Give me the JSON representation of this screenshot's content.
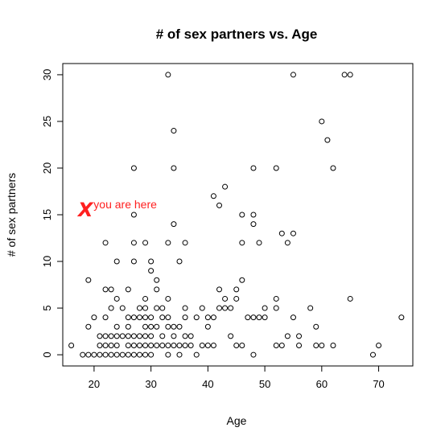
{
  "chart_data": {
    "type": "scatter",
    "title": "# of sex partners vs. Age",
    "xlabel": "Age",
    "ylabel": "# of sex partners",
    "xlim": [
      14.5,
      76
    ],
    "ylim": [
      -1.2,
      31.2
    ],
    "xticks": [
      20,
      30,
      40,
      50,
      60,
      70
    ],
    "yticks": [
      0,
      5,
      10,
      15,
      20,
      25,
      30
    ],
    "grid": false,
    "legend": "none",
    "marker": "open-circle",
    "marker_color": "#000000",
    "points": [
      [
        16,
        1
      ],
      [
        18,
        0
      ],
      [
        19,
        0
      ],
      [
        19,
        8
      ],
      [
        19,
        3
      ],
      [
        20,
        0
      ],
      [
        20,
        4
      ],
      [
        21,
        0
      ],
      [
        21,
        1
      ],
      [
        21,
        2
      ],
      [
        22,
        0
      ],
      [
        22,
        1
      ],
      [
        22,
        2
      ],
      [
        22,
        4
      ],
      [
        22,
        7
      ],
      [
        22,
        12
      ],
      [
        23,
        0
      ],
      [
        23,
        1
      ],
      [
        23,
        2
      ],
      [
        23,
        5
      ],
      [
        23,
        7
      ],
      [
        24,
        0
      ],
      [
        24,
        1
      ],
      [
        24,
        2
      ],
      [
        24,
        3
      ],
      [
        24,
        6
      ],
      [
        24,
        10
      ],
      [
        25,
        0
      ],
      [
        25,
        2
      ],
      [
        25,
        5
      ],
      [
        26,
        0
      ],
      [
        26,
        1
      ],
      [
        26,
        2
      ],
      [
        26,
        3
      ],
      [
        26,
        4
      ],
      [
        26,
        7
      ],
      [
        27,
        0
      ],
      [
        27,
        1
      ],
      [
        27,
        2
      ],
      [
        27,
        4
      ],
      [
        27,
        10
      ],
      [
        27,
        12
      ],
      [
        27,
        15
      ],
      [
        27,
        20
      ],
      [
        28,
        0
      ],
      [
        28,
        1
      ],
      [
        28,
        2
      ],
      [
        28,
        4
      ],
      [
        28,
        5
      ],
      [
        29,
        0
      ],
      [
        29,
        1
      ],
      [
        29,
        2
      ],
      [
        29,
        3
      ],
      [
        29,
        4
      ],
      [
        29,
        5
      ],
      [
        29,
        6
      ],
      [
        29,
        12
      ],
      [
        30,
        0
      ],
      [
        30,
        1
      ],
      [
        30,
        2
      ],
      [
        30,
        3
      ],
      [
        30,
        4
      ],
      [
        30,
        9
      ],
      [
        30,
        10
      ],
      [
        31,
        1
      ],
      [
        31,
        3
      ],
      [
        31,
        5
      ],
      [
        31,
        7
      ],
      [
        31,
        8
      ],
      [
        32,
        1
      ],
      [
        32,
        2
      ],
      [
        32,
        4
      ],
      [
        32,
        5
      ],
      [
        33,
        0
      ],
      [
        33,
        1
      ],
      [
        33,
        3
      ],
      [
        33,
        4
      ],
      [
        33,
        6
      ],
      [
        33,
        12
      ],
      [
        33,
        30
      ],
      [
        34,
        1
      ],
      [
        34,
        2
      ],
      [
        34,
        3
      ],
      [
        34,
        14
      ],
      [
        34,
        20
      ],
      [
        34,
        24
      ],
      [
        35,
        0
      ],
      [
        35,
        1
      ],
      [
        35,
        3
      ],
      [
        35,
        10
      ],
      [
        36,
        1
      ],
      [
        36,
        2
      ],
      [
        36,
        4
      ],
      [
        36,
        5
      ],
      [
        36,
        12
      ],
      [
        37,
        1
      ],
      [
        37,
        2
      ],
      [
        38,
        0
      ],
      [
        38,
        4
      ],
      [
        39,
        1
      ],
      [
        39,
        5
      ],
      [
        40,
        1
      ],
      [
        40,
        3
      ],
      [
        40,
        4
      ],
      [
        41,
        1
      ],
      [
        41,
        4
      ],
      [
        41,
        17
      ],
      [
        42,
        5
      ],
      [
        42,
        7
      ],
      [
        42,
        16
      ],
      [
        43,
        5
      ],
      [
        43,
        6
      ],
      [
        43,
        18
      ],
      [
        44,
        2
      ],
      [
        44,
        5
      ],
      [
        45,
        1
      ],
      [
        45,
        6
      ],
      [
        45,
        7
      ],
      [
        46,
        1
      ],
      [
        46,
        8
      ],
      [
        46,
        12
      ],
      [
        46,
        15
      ],
      [
        47,
        4
      ],
      [
        48,
        0
      ],
      [
        48,
        4
      ],
      [
        48,
        14
      ],
      [
        48,
        15
      ],
      [
        48,
        20
      ],
      [
        49,
        4
      ],
      [
        49,
        12
      ],
      [
        50,
        4
      ],
      [
        50,
        5
      ],
      [
        52,
        1
      ],
      [
        52,
        5
      ],
      [
        52,
        6
      ],
      [
        52,
        20
      ],
      [
        53,
        1
      ],
      [
        53,
        13
      ],
      [
        54,
        2
      ],
      [
        54,
        12
      ],
      [
        55,
        4
      ],
      [
        55,
        13
      ],
      [
        55,
        30
      ],
      [
        56,
        1
      ],
      [
        56,
        2
      ],
      [
        58,
        5
      ],
      [
        59,
        1
      ],
      [
        59,
        3
      ],
      [
        60,
        1
      ],
      [
        60,
        25
      ],
      [
        61,
        23
      ],
      [
        62,
        1
      ],
      [
        62,
        20
      ],
      [
        64,
        30
      ],
      [
        65,
        6
      ],
      [
        65,
        30
      ],
      [
        69,
        0
      ],
      [
        70,
        1
      ],
      [
        74,
        4
      ]
    ],
    "annotation": {
      "text": "you are here",
      "color": "#ff2020",
      "marker": "X",
      "x": 18.5,
      "y": 15.5
    }
  }
}
